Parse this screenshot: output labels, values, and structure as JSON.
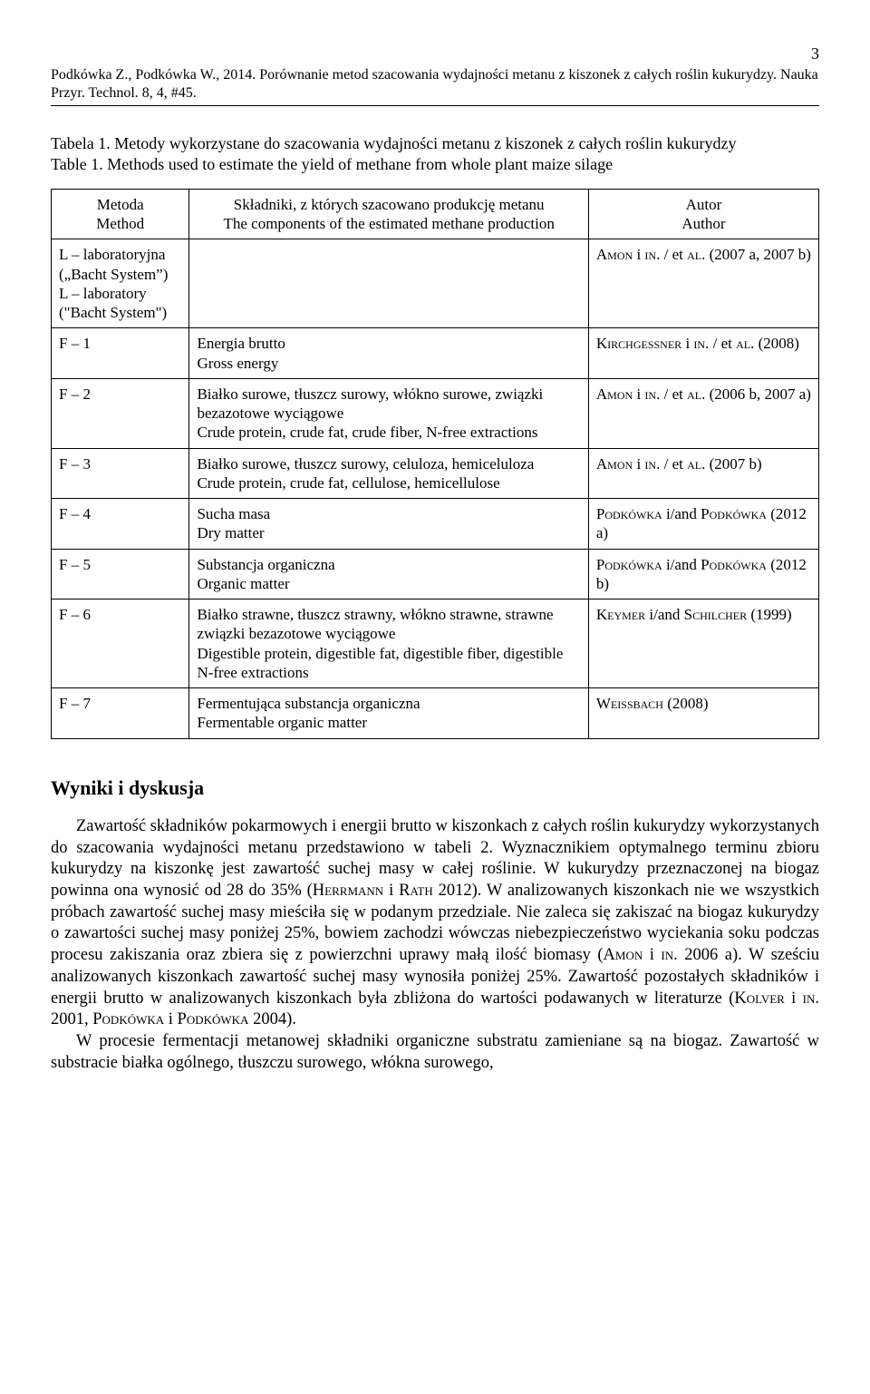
{
  "page_number": "3",
  "header_citation": "Podkówka Z., Podkówka W., 2014. Porównanie metod szacowania wydajności metanu z kiszonek z całych roślin kukurydzy. Nauka Przyr. Technol. 8, 4, #45.",
  "table_caption_pl": "Tabela 1. Metody wykorzystane do szacowania wydajności metanu z kiszonek z całych roślin kukurydzy",
  "table_caption_en": "Table 1. Methods used to estimate the yield of methane from whole plant maize silage",
  "th_method_pl": "Metoda",
  "th_method_en": "Method",
  "th_components_pl": "Składniki, z których szacowano produkcję metanu",
  "th_components_en": "The components of the estimated methane production",
  "th_author_pl": "Autor",
  "th_author_en": "Author",
  "rows": [
    {
      "method": "L – laboratoryjna („Bacht System”)\nL – laboratory (\"Bacht System\")",
      "components": "",
      "author_html": "A<span class='smallcaps'>mon</span> i <span class='smallcaps'>in.</span> / et <span class='smallcaps'>al.</span> (2007 a, 2007 b)"
    },
    {
      "method": "F – 1",
      "components": "Energia brutto\nGross energy",
      "author_html": "K<span class='smallcaps'>irchgeßner</span> i <span class='smallcaps'>in.</span> / et <span class='smallcaps'>al.</span> (2008)"
    },
    {
      "method": "F – 2",
      "components": "Białko surowe, tłuszcz surowy, włókno surowe, związki bezazotowe wyciągowe\nCrude protein, crude fat, crude fiber, N-free extractions",
      "author_html": "A<span class='smallcaps'>mon</span> i <span class='smallcaps'>in.</span> / et <span class='smallcaps'>al.</span> (2006 b, 2007 a)"
    },
    {
      "method": "F – 3",
      "components": "Białko surowe, tłuszcz surowy, celuloza, hemiceluloza\nCrude protein, crude fat, cellulose, hemicellulose",
      "author_html": "A<span class='smallcaps'>mon</span> i <span class='smallcaps'>in.</span> / et <span class='smallcaps'>al.</span> (2007 b)"
    },
    {
      "method": "F – 4",
      "components": "Sucha masa\nDry matter",
      "author_html": "P<span class='smallcaps'>odkówka</span> i/and P<span class='smallcaps'>odkówka</span> (2012 a)"
    },
    {
      "method": "F – 5",
      "components": "Substancja organiczna\nOrganic matter",
      "author_html": "P<span class='smallcaps'>odkówka</span> i/and P<span class='smallcaps'>odkówka</span> (2012 b)"
    },
    {
      "method": "F – 6",
      "components": "Białko strawne, tłuszcz strawny, włókno strawne, strawne związki bezazotowe wyciągowe\nDigestible protein, digestible fat, digestible fiber, digestible N-free extractions",
      "author_html": "K<span class='smallcaps'>eymer</span> i/and S<span class='smallcaps'>chilcher</span> (1999)"
    },
    {
      "method": "F – 7",
      "components": "Fermentująca substancja organiczna\nFermentable organic matter",
      "author_html": "W<span class='smallcaps'>eißbach</span> (2008)"
    }
  ],
  "section_heading": "Wyniki i dyskusja",
  "para1_html": "Zawartość składników pokarmowych i energii brutto w kiszonkach z całych roślin kukurydzy wykorzystanych do szacowania wydajności metanu przedstawiono w tabeli 2. Wyznacznikiem optymalnego terminu zbioru kukurydzy na kiszonkę jest zawartość suchej masy w całej roślinie. W kukurydzy przeznaczonej na biogaz powinna ona wynosić od 28 do 35% (H<span class='smallcaps'>errmann</span> i R<span class='smallcaps'>ath</span> 2012). W analizowanych kiszonkach nie we wszystkich próbach zawartość suchej masy mieściła się w podanym przedziale. Nie zaleca się zakiszać na biogaz kukurydzy o zawartości suchej masy poniżej 25%, bowiem zachodzi wówczas niebezpieczeństwo wyciekania soku podczas procesu zakiszania oraz zbiera się z powierzchni uprawy małą ilość biomasy (A<span class='smallcaps'>mon</span> i <span class='smallcaps'>in.</span> 2006 a). W sześciu analizowanych kiszonkach zawartość suchej masy wynosiła poniżej 25%. Zawartość pozostałych składników i energii brutto w analizowanych kiszonkach była zbliżona do wartości podawanych w literaturze (K<span class='smallcaps'>olver</span> i <span class='smallcaps'>in.</span> 2001, P<span class='smallcaps'>odkówka</span> i P<span class='smallcaps'>odkówka</span> 2004).",
  "para2_html": "W procesie fermentacji metanowej składniki organiczne substratu zamieniane są na biogaz. Zawartość w substracie białka ogólnego, tłuszczu surowego, włókna surowego,"
}
